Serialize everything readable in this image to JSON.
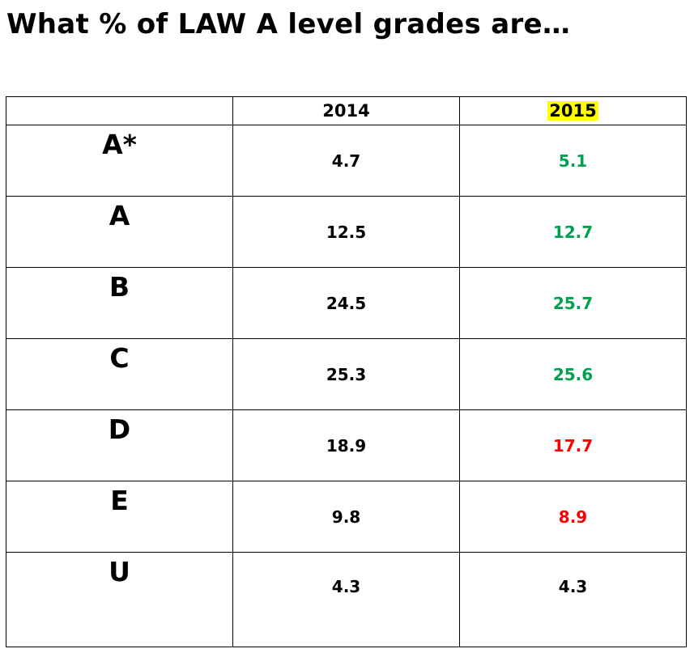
{
  "title": "What % of LAW A level grades are…",
  "colors": {
    "increase": "#00a050",
    "decrease": "#ff0000",
    "same": "#000000",
    "highlight": "#ffff00"
  },
  "table": {
    "headers": [
      "",
      "2014",
      "2015"
    ],
    "rows": [
      {
        "grade": "A*",
        "y2014": "4.7",
        "y2015": "5.1",
        "trend": "increase"
      },
      {
        "grade": "A",
        "y2014": "12.5",
        "y2015": "12.7",
        "trend": "increase"
      },
      {
        "grade": "B",
        "y2014": "24.5",
        "y2015": "25.7",
        "trend": "increase"
      },
      {
        "grade": "C",
        "y2014": "25.3",
        "y2015": "25.6",
        "trend": "increase"
      },
      {
        "grade": "D",
        "y2014": "18.9",
        "y2015": "17.7",
        "trend": "decrease"
      },
      {
        "grade": "E",
        "y2014": "9.8",
        "y2015": "8.9",
        "trend": "decrease"
      },
      {
        "grade": "U",
        "y2014": "4.3",
        "y2015": "4.3",
        "trend": "same"
      }
    ]
  }
}
